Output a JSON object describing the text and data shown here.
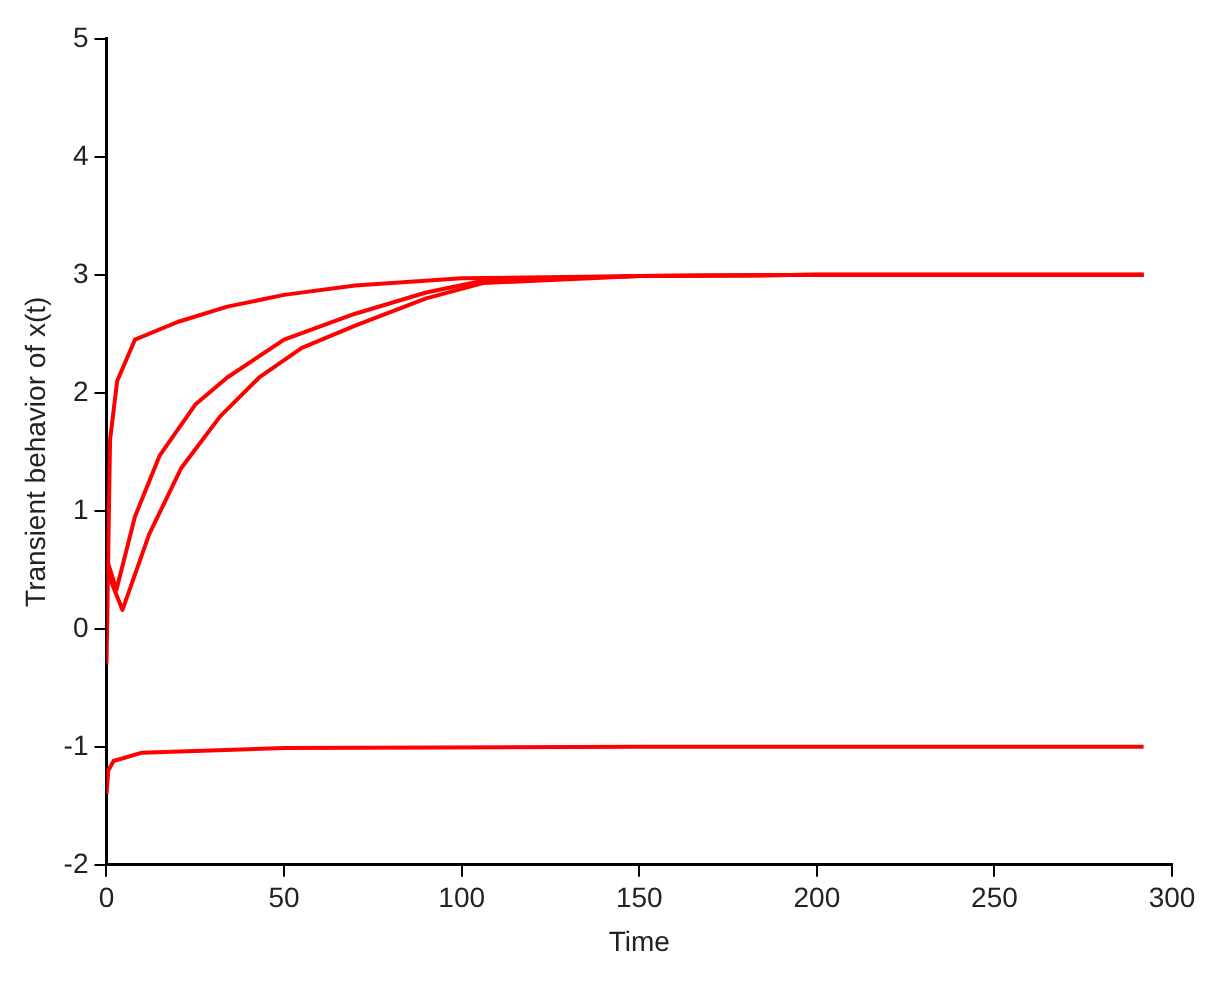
{
  "chart_data": {
    "type": "line",
    "xlabel": "Time",
    "ylabel": "Transient behavior of x(t)",
    "xlim": [
      0,
      300
    ],
    "ylim": [
      -2,
      5
    ],
    "xticks": [
      0,
      50,
      100,
      150,
      200,
      250,
      300
    ],
    "yticks": [
      -2,
      -1,
      0,
      1,
      2,
      3,
      4,
      5
    ],
    "grid": false,
    "legend": false,
    "series": [
      {
        "color": "#ff0000",
        "x": [
          0,
          1,
          3,
          8,
          20,
          34,
          50,
          70,
          100,
          150,
          200,
          292
        ],
        "values": [
          -0.3,
          1.6,
          2.1,
          2.45,
          2.6,
          2.73,
          2.83,
          2.91,
          2.97,
          2.99,
          3,
          3
        ]
      },
      {
        "color": "#ff0000",
        "x": [
          0,
          2.8,
          8,
          15,
          25,
          34,
          50,
          70,
          90,
          106,
          150,
          200,
          292
        ],
        "values": [
          0.6,
          0.33,
          0.95,
          1.47,
          1.9,
          2.13,
          2.45,
          2.67,
          2.85,
          2.95,
          2.99,
          3,
          3
        ]
      },
      {
        "color": "#ff0000",
        "x": [
          0,
          4.5,
          12,
          21,
          32,
          43,
          55,
          70,
          90,
          106,
          150,
          200,
          292
        ],
        "values": [
          0.5,
          0.16,
          0.8,
          1.36,
          1.8,
          2.13,
          2.38,
          2.57,
          2.8,
          2.93,
          2.99,
          3,
          3
        ]
      },
      {
        "color": "#ff0000",
        "x": [
          0,
          0.5,
          2,
          10,
          50,
          150,
          292
        ],
        "values": [
          -1.4,
          -1.2,
          -1.12,
          -1.05,
          -1.01,
          -1,
          -1
        ]
      }
    ]
  }
}
